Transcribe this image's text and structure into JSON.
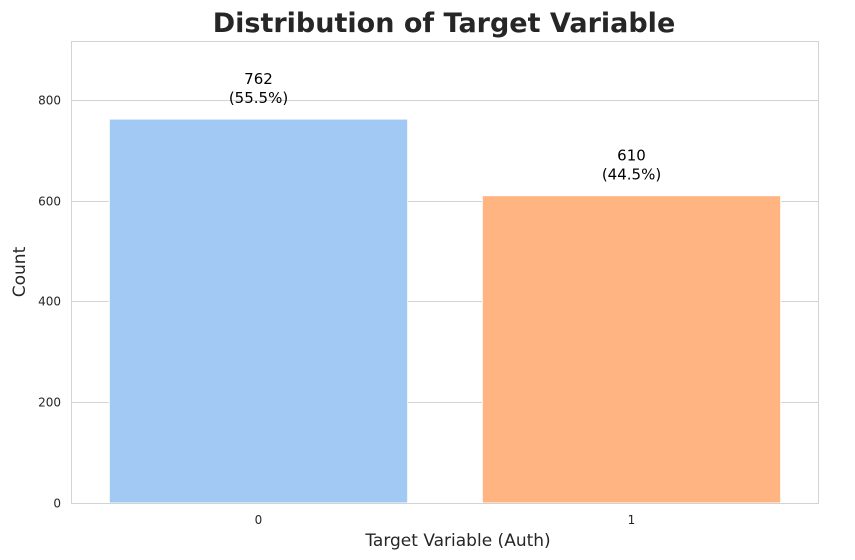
{
  "chart_data": {
    "type": "bar",
    "title": "Distribution of Target Variable",
    "xlabel": "Target Variable (Auth)",
    "ylabel": "Count",
    "categories": [
      "0",
      "1"
    ],
    "values": [
      762,
      610
    ],
    "bar_labels": [
      "762\n(55.5%)",
      "610\n(44.5%)"
    ],
    "colors": [
      "#a1c9f4",
      "#ffb482"
    ],
    "ylim": [
      0,
      915
    ],
    "yticks": [
      0,
      200,
      400,
      600,
      800
    ],
    "grid": "y",
    "legend": "none"
  }
}
